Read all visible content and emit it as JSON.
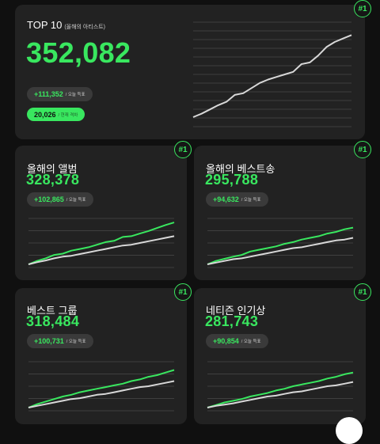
{
  "top": {
    "rank": "#1",
    "title": "TOP 10",
    "subtitle": "(올해의 아티스트)",
    "total": "352,082",
    "today_value": "+111,352",
    "today_label": "/ 오늘 득표",
    "rank_value": "20,026",
    "rank_label": "/ 현재 격차"
  },
  "cards": [
    {
      "rank": "#1",
      "title": "올해의 앨범",
      "total": "328,378",
      "today_value": "+102,865",
      "today_label": "/ 오늘 득표"
    },
    {
      "rank": "#1",
      "title": "올해의 베스트송",
      "total": "295,788",
      "today_value": "+94,632",
      "today_label": "/ 오늘 득표"
    },
    {
      "rank": "#1",
      "title": "베스트 그룹",
      "total": "318,484",
      "today_value": "+100,731",
      "today_label": "/ 오늘 득표"
    },
    {
      "rank": "#1",
      "title": "네티즌 인기상",
      "total": "281,743",
      "today_value": "+90,854",
      "today_label": "/ 오늘 득표"
    }
  ],
  "colors": {
    "accent": "#39e75f",
    "card": "#222222",
    "background": "#101010",
    "second_line": "#d8d8d8"
  },
  "chart_data": [
    {
      "type": "line",
      "series": [
        {
          "values": [
            0,
            4,
            9,
            14,
            18,
            26,
            28,
            34,
            40,
            44,
            47,
            50,
            53,
            62,
            64,
            72,
            82,
            88,
            92,
            96
          ]
        }
      ]
    },
    {
      "type": "line",
      "series": [
        {
          "values": [
            0,
            8,
            14,
            22,
            25,
            32,
            36,
            40,
            46,
            52,
            55,
            64,
            66,
            72,
            78,
            85,
            92,
            98
          ]
        },
        {
          "values": [
            0,
            5,
            9,
            14,
            18,
            20,
            24,
            28,
            32,
            36,
            40,
            44,
            46,
            50,
            54,
            58,
            62,
            66
          ]
        }
      ]
    },
    {
      "type": "line",
      "series": [
        {
          "values": [
            0,
            8,
            13,
            18,
            22,
            30,
            34,
            38,
            42,
            48,
            52,
            58,
            62,
            66,
            72,
            76,
            82,
            86
          ]
        },
        {
          "values": [
            0,
            4,
            8,
            12,
            14,
            18,
            22,
            26,
            30,
            34,
            38,
            40,
            44,
            48,
            52,
            56,
            58,
            62
          ]
        }
      ]
    },
    {
      "type": "line",
      "series": [
        {
          "values": [
            0,
            8,
            14,
            20,
            26,
            30,
            36,
            40,
            44,
            48,
            52,
            56,
            62,
            66,
            72,
            76,
            82,
            88
          ]
        },
        {
          "values": [
            0,
            4,
            8,
            12,
            16,
            20,
            22,
            26,
            30,
            32,
            36,
            40,
            44,
            48,
            50,
            54,
            58,
            62
          ]
        }
      ]
    },
    {
      "type": "line",
      "series": [
        {
          "values": [
            0,
            6,
            12,
            16,
            20,
            26,
            30,
            34,
            40,
            44,
            50,
            54,
            58,
            62,
            68,
            72,
            78,
            82
          ]
        },
        {
          "values": [
            0,
            4,
            7,
            10,
            14,
            18,
            22,
            26,
            28,
            32,
            36,
            38,
            42,
            46,
            50,
            52,
            56,
            60
          ]
        }
      ]
    }
  ]
}
